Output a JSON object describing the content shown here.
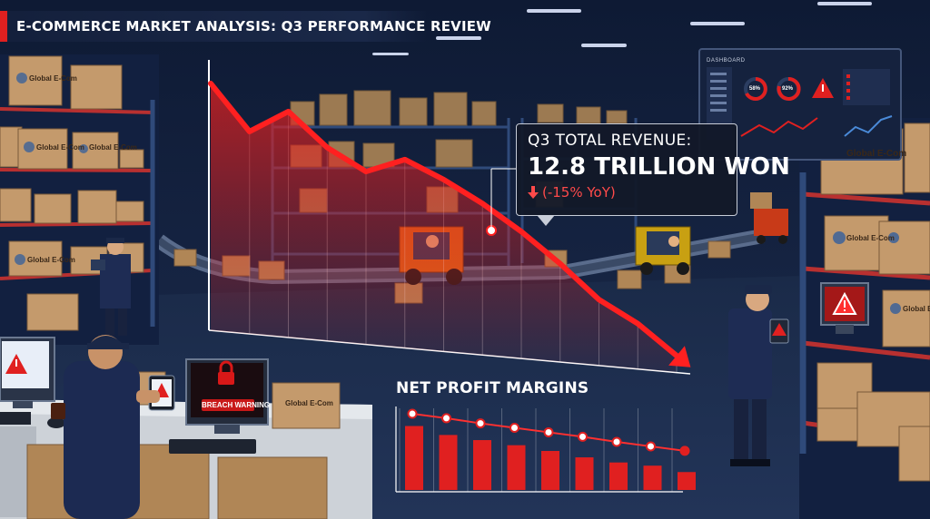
{
  "header": {
    "title": "E-COMMERCE MARKET ANALYSIS: Q3 PERFORMANCE REVIEW"
  },
  "callout": {
    "label": "Q3 TOTAL REVENUE:",
    "value": "12.8 TRILLION WON",
    "change": "(-15% YoY)",
    "change_icon": "arrow-down-icon"
  },
  "net_profit": {
    "title": "NET PROFIT MARGINS"
  },
  "boxes": {
    "brand": "Global E-Com"
  },
  "monitor": {
    "warning_text": "BREACH WARNING"
  },
  "dashboard": {
    "title": "DASHBOARD",
    "gauge_1": "58%",
    "gauge_2": "92%"
  },
  "colors": {
    "accent_red": "#e02020",
    "background_navy": "#0d1830",
    "box_cardboard": "#c49a6c"
  },
  "chart_data": [
    {
      "type": "line",
      "title": "",
      "xlabel": "",
      "ylabel": "",
      "values": [
        100,
        88,
        93,
        84,
        78,
        81,
        76,
        70,
        63,
        55,
        46,
        40,
        32
      ],
      "trend": "declining",
      "grid": true
    },
    {
      "type": "bar",
      "title": "NET PROFIT MARGINS",
      "values": [
        10,
        8.6,
        7.8,
        7.0,
        6.1,
        5.1,
        4.3,
        3.8,
        2.8
      ],
      "line_values": [
        10.5,
        9.8,
        9.0,
        8.3,
        7.6,
        6.9,
        6.1,
        5.4,
        4.7
      ],
      "grid": true
    }
  ]
}
